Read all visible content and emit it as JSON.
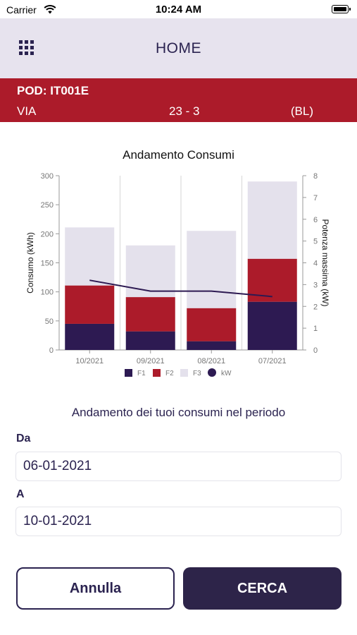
{
  "status_bar": {
    "carrier": "Carrier",
    "time": "10:24 AM"
  },
  "nav": {
    "title": "HOME",
    "menu_icon": "grid-menu-icon"
  },
  "pod": {
    "title": "POD: IT001E",
    "street": "VIA",
    "number": "23 - 3",
    "province": "(BL)"
  },
  "chart_data": {
    "type": "bar",
    "title": "Andamento Consumi",
    "categories": [
      "10/2021",
      "09/2021",
      "08/2021",
      "07/2021"
    ],
    "series": [
      {
        "name": "F1",
        "type": "bar",
        "stacked": true,
        "axis": "left",
        "color": "#2d1a52",
        "values": [
          45,
          32,
          15,
          83
        ]
      },
      {
        "name": "F2",
        "type": "bar",
        "stacked": true,
        "axis": "left",
        "color": "#ac1b2a",
        "values": [
          66,
          59,
          57,
          74
        ]
      },
      {
        "name": "F3",
        "type": "bar",
        "stacked": true,
        "axis": "left",
        "color": "#e4e1ec",
        "values": [
          100,
          89,
          133,
          133
        ]
      },
      {
        "name": "kW",
        "type": "line",
        "axis": "right",
        "color": "#2d1a52",
        "values": [
          3.2,
          2.7,
          2.7,
          2.45
        ]
      }
    ],
    "ylabel": "Consumo (kWh)",
    "ylim": [
      0,
      300
    ],
    "yticks": [
      0,
      50,
      100,
      150,
      200,
      250,
      300
    ],
    "y2label": "Potenza massima (kW)",
    "y2lim": [
      0,
      8
    ],
    "y2ticks": [
      0,
      1,
      2,
      3,
      4,
      5,
      6,
      7,
      8
    ],
    "grid": "vertical",
    "legend": "bottom"
  },
  "form": {
    "section_title": "Andamento dei tuoi consumi nel periodo",
    "from_label": "Da",
    "from_value": "06-01-2021",
    "to_label": "A",
    "to_value": "10-01-2021"
  },
  "buttons": {
    "cancel": "Annulla",
    "search": "CERCA"
  }
}
